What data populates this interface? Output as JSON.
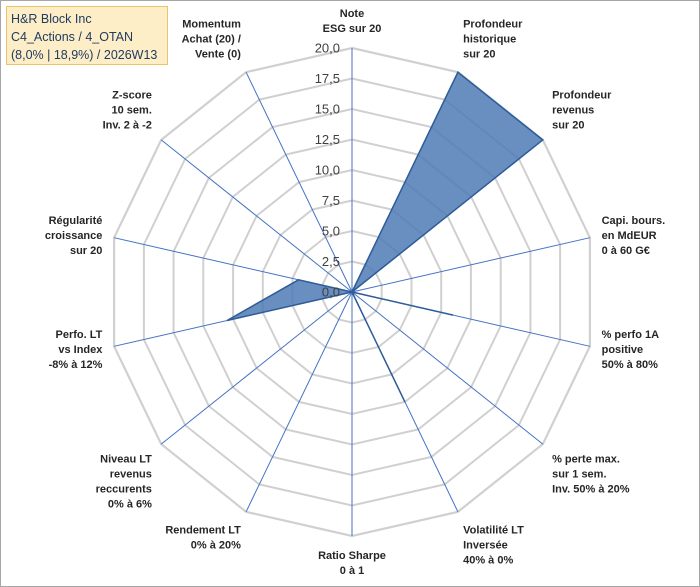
{
  "header": {
    "line1": "H&R Block Inc",
    "line2": "C4_Actions / 4_OTAN",
    "line3": "(8,0% | 18,9%) / 2026W13"
  },
  "chart_data": {
    "type": "radar",
    "rmax": 20,
    "ticks": [
      "0,0",
      "2,5",
      "5,0",
      "7,5",
      "10,0",
      "12,5",
      "15,0",
      "17,5",
      "20,0"
    ],
    "axes": [
      {
        "label": [
          "Note",
          "ESG sur 20"
        ],
        "value": 0
      },
      {
        "label": [
          "Profondeur",
          "historique",
          "sur 20"
        ],
        "value": 20
      },
      {
        "label": [
          "Profondeur",
          "revenus",
          "sur 20"
        ],
        "value": 20
      },
      {
        "label": [
          "Capi. bours.",
          "en MdEUR",
          "0 à 60 G€"
        ],
        "value": 0
      },
      {
        "label": [
          "% perfo 1A",
          "positive",
          "50% à 80%"
        ],
        "value": 8.5
      },
      {
        "label": [
          "% perte max.",
          "sur 1 sem.",
          "Inv. 50% à 20%"
        ],
        "value": 0
      },
      {
        "label": [
          "Volatilité LT",
          "Inversée",
          "40% à 0%"
        ],
        "value": 10
      },
      {
        "label": [
          "Ratio Sharpe",
          "0 à 1"
        ],
        "value": 0
      },
      {
        "label": [
          "Rendement LT",
          "0% à 20%"
        ],
        "value": 0
      },
      {
        "label": [
          "Niveau LT",
          "revenus",
          "reccurents",
          "0% à 6%"
        ],
        "value": 0
      },
      {
        "label": [
          "Perfo. LT",
          "vs Index",
          "-8% à 12%"
        ],
        "value": 10.5
      },
      {
        "label": [
          "Régularité",
          "croissance",
          "sur 20"
        ],
        "value": 4.5
      },
      {
        "label": [
          "Z-score",
          "10 sem.",
          "Inv. 2 à -2"
        ],
        "value": 0
      },
      {
        "label": [
          "Momentum",
          "Achat (20) /",
          "Vente (0)"
        ],
        "value": 0
      }
    ],
    "colors": {
      "fill": "#4f7ab5",
      "stroke": "#2e5c98",
      "axis": "#4472c4",
      "grid": "#d0d0d0"
    },
    "grid": true
  }
}
